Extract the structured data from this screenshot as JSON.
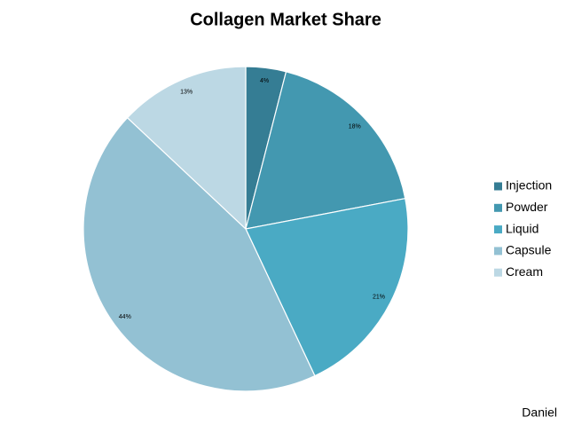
{
  "chart_data": {
    "type": "pie",
    "title": "Collagen Market Share",
    "categories": [
      "Injection",
      "Powder",
      "Liquid",
      "Capsule",
      "Cream"
    ],
    "values": [
      4,
      18,
      21,
      44,
      13
    ],
    "value_labels": [
      "4%",
      "18%",
      "21%",
      "44%",
      "13%"
    ],
    "colors": [
      "#357d94",
      "#4398b0",
      "#4aaac4",
      "#93c1d3",
      "#bcd8e4"
    ],
    "legend": "right",
    "footer": "Daniel"
  }
}
